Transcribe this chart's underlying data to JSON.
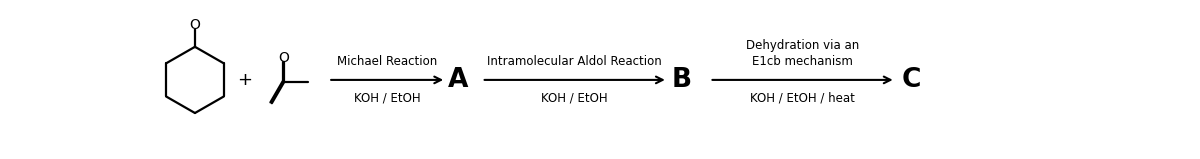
{
  "bg_color": "#ffffff",
  "text_color": "#000000",
  "arrow1_label_top": "Michael Reaction",
  "arrow1_label_bot": "KOH / EtOH",
  "arrow2_label_top": "Intramolecular Aldol Reaction",
  "arrow2_label_bot": "KOH / EtOH",
  "arrow3_label_top": "Dehydration via an\nE1cb mechanism",
  "arrow3_label_bot": "KOH / EtOH / heat",
  "product_A": "A",
  "product_B": "B",
  "product_C": "C",
  "plus_sign": "+",
  "fig_width": 12.0,
  "fig_height": 1.59,
  "dpi": 100
}
